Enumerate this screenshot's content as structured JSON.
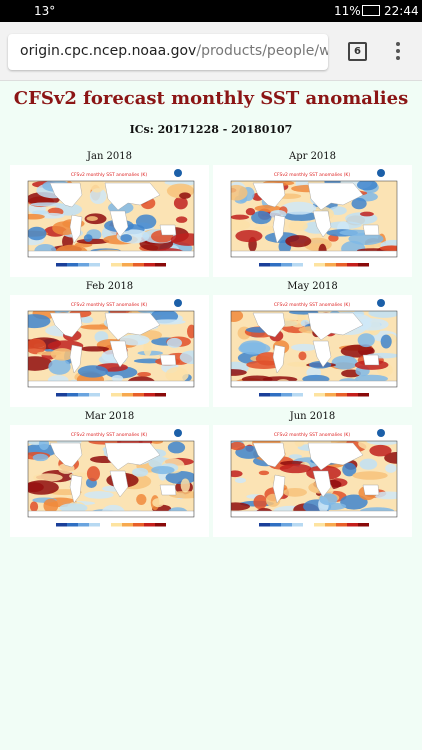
{
  "status_bar": {
    "temperature": "13°",
    "battery": "11%",
    "time": "22:44"
  },
  "browser": {
    "url_host": "origin.cpc.ncep.noaa.gov",
    "url_path": "/products/people/wwang",
    "tab_count": "6"
  },
  "page": {
    "title": "CFSv2 forecast monthly SST anomalies",
    "subtitle": "ICs: 20171228 - 20180107",
    "panels": [
      {
        "label": "Jan 2018",
        "map_title": "CFSv2 monthly SST anomalies (K)"
      },
      {
        "label": "Apr 2018",
        "map_title": "CFSv2 monthly SST anomalies (K)"
      },
      {
        "label": "Feb 2018",
        "map_title": "CFSv2 monthly SST anomalies (K)"
      },
      {
        "label": "May 2018",
        "map_title": "CFSv2 monthly SST anomalies (K)"
      },
      {
        "label": "Mar 2018",
        "map_title": "CFSv2 monthly SST anomalies (K)"
      },
      {
        "label": "Jun 2018",
        "map_title": "CFSv2 monthly SST anomalies (K)"
      }
    ]
  }
}
